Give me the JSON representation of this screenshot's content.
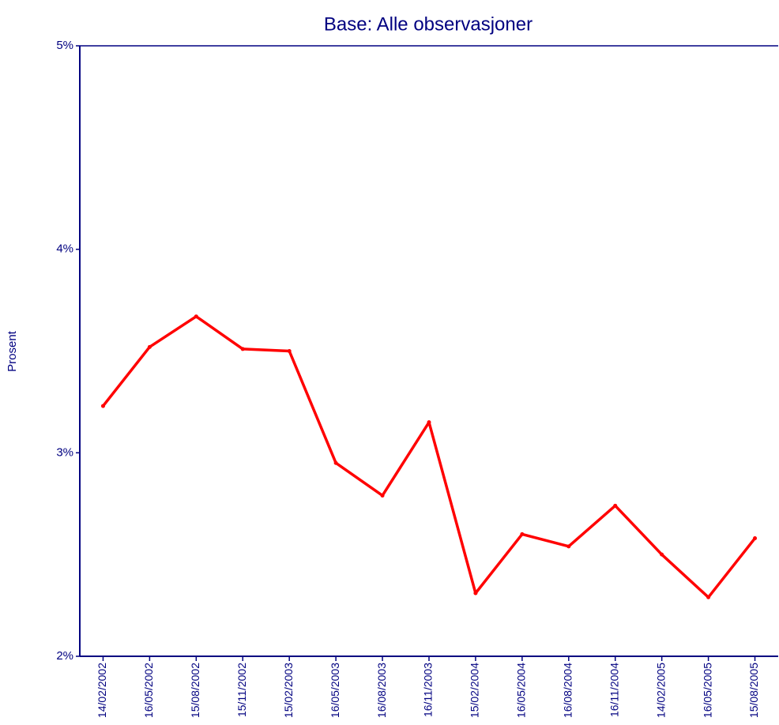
{
  "chart_data": {
    "type": "line",
    "title": "Base: Alle observasjoner",
    "y_label": "Prosent",
    "categories": [
      "14/02/2002",
      "16/05/2002",
      "15/08/2002",
      "15/11/2002",
      "15/02/2003",
      "16/05/2003",
      "16/08/2003",
      "16/11/2003",
      "15/02/2004",
      "16/05/2004",
      "16/08/2004",
      "16/11/2004",
      "14/02/2005",
      "16/05/2005",
      "15/08/2005"
    ],
    "series": [
      {
        "color": "#ff0000",
        "values": [
          3.23,
          3.52,
          3.67,
          3.51,
          3.5,
          2.95,
          2.79,
          3.15,
          2.31,
          2.6,
          2.54,
          2.74,
          2.5,
          2.29,
          2.58
        ]
      }
    ],
    "ylim": [
      2,
      5
    ],
    "yticks": [
      {
        "value": 2,
        "label": "2%"
      },
      {
        "value": 3,
        "label": "3%"
      },
      {
        "value": 4,
        "label": "4%"
      },
      {
        "value": 5,
        "label": "5%"
      }
    ],
    "grid": false
  }
}
